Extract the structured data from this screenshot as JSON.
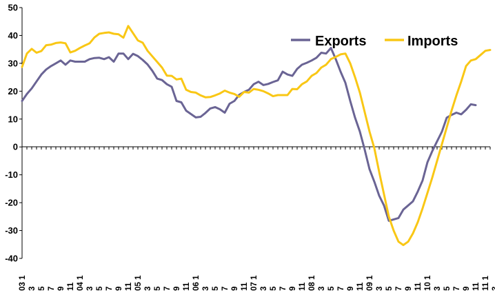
{
  "chart_data": {
    "type": "line",
    "title": "",
    "xlabel": "",
    "ylabel": "",
    "ylim": [
      -40,
      50
    ],
    "yticks": [
      50,
      40,
      30,
      20,
      10,
      0,
      -10,
      -20,
      -30,
      -40
    ],
    "grid": false,
    "legend_placement": "top-right",
    "x_tick_labels": [
      {
        "month": 0,
        "label": "03 1"
      },
      {
        "month": 2,
        "label": "3"
      },
      {
        "month": 4,
        "label": "5"
      },
      {
        "month": 6,
        "label": "7"
      },
      {
        "month": 8,
        "label": "9"
      },
      {
        "month": 10,
        "label": "11"
      },
      {
        "month": 12,
        "label": "04 1"
      },
      {
        "month": 14,
        "label": "3"
      },
      {
        "month": 16,
        "label": "5"
      },
      {
        "month": 18,
        "label": "7"
      },
      {
        "month": 20,
        "label": "9"
      },
      {
        "month": 22,
        "label": "11"
      },
      {
        "month": 24,
        "label": "05 1"
      },
      {
        "month": 26,
        "label": "3"
      },
      {
        "month": 28,
        "label": "5"
      },
      {
        "month": 30,
        "label": "7"
      },
      {
        "month": 32,
        "label": "9"
      },
      {
        "month": 34,
        "label": "11"
      },
      {
        "month": 36,
        "label": "06 1"
      },
      {
        "month": 38,
        "label": "3"
      },
      {
        "month": 40,
        "label": "5"
      },
      {
        "month": 42,
        "label": "7"
      },
      {
        "month": 44,
        "label": "9"
      },
      {
        "month": 46,
        "label": "11"
      },
      {
        "month": 48,
        "label": "07 1"
      },
      {
        "month": 50,
        "label": "3"
      },
      {
        "month": 52,
        "label": "5"
      },
      {
        "month": 54,
        "label": "7"
      },
      {
        "month": 56,
        "label": "9"
      },
      {
        "month": 58,
        "label": "11"
      },
      {
        "month": 60,
        "label": "08 1"
      },
      {
        "month": 62,
        "label": "3"
      },
      {
        "month": 64,
        "label": "5"
      },
      {
        "month": 66,
        "label": "7"
      },
      {
        "month": 68,
        "label": "9"
      },
      {
        "month": 70,
        "label": "11"
      },
      {
        "month": 72,
        "label": "09 1"
      },
      {
        "month": 74,
        "label": "3"
      },
      {
        "month": 76,
        "label": "5"
      },
      {
        "month": 78,
        "label": "7"
      },
      {
        "month": 80,
        "label": "9"
      },
      {
        "month": 82,
        "label": "11"
      },
      {
        "month": 84,
        "label": "10 1"
      },
      {
        "month": 86,
        "label": "3"
      },
      {
        "month": 88,
        "label": "5"
      },
      {
        "month": 90,
        "label": "7"
      },
      {
        "month": 92,
        "label": "9"
      },
      {
        "month": 94,
        "label": "11"
      },
      {
        "month": 96,
        "label": "11 1"
      },
      {
        "month": 98,
        "label": "3"
      }
    ],
    "series": [
      {
        "name": "Exports",
        "color": "#6A6494",
        "values": [
          16.5,
          19,
          21,
          23.5,
          26,
          27.8,
          29,
          30,
          31,
          29.5,
          31,
          30.6,
          30.6,
          30.6,
          31.5,
          31.9,
          32,
          31.5,
          32.2,
          30.6,
          33.5,
          33.5,
          31.5,
          33.4,
          32.6,
          31.2,
          29.6,
          27.3,
          24.5,
          24,
          22.5,
          21.6,
          16.5,
          16,
          13,
          11.8,
          10.6,
          10.8,
          12.2,
          13.8,
          14.3,
          13.5,
          12.3,
          15.5,
          16.5,
          18.7,
          19.7,
          20.5,
          22.5,
          23.4,
          22.2,
          22.6,
          23.3,
          23.9,
          27,
          26,
          25.5,
          28,
          29.5,
          30.2,
          31,
          32,
          33.8,
          33.5,
          35.5,
          31.5,
          27,
          23,
          16.5,
          10.5,
          5.5,
          -1,
          -8,
          -12.5,
          -17.5,
          -21,
          -26.5,
          -26,
          -25.5,
          -22.5,
          -21,
          -19.5,
          -16,
          -12,
          -5.5,
          -1.5,
          2,
          5.5,
          10.5,
          11.5,
          12.3,
          11.7,
          13.3,
          15.3,
          15
        ],
        "x_start_month": 0
      },
      {
        "name": "Imports",
        "color": "#F9C715",
        "values": [
          28.7,
          33.5,
          35.2,
          33.8,
          34.4,
          36.5,
          36.7,
          37.3,
          37.5,
          37.2,
          33.9,
          34.5,
          35.5,
          36.4,
          37.2,
          39.3,
          40.6,
          40.9,
          41.1,
          40.6,
          40.4,
          39.2,
          43.4,
          40.8,
          38.2,
          37.4,
          34.5,
          32.5,
          30.5,
          28.5,
          25.6,
          25.5,
          24.2,
          24.5,
          20.5,
          19.7,
          19.5,
          18.5,
          17.8,
          17.9,
          18.5,
          19.2,
          20.2,
          19.5,
          19,
          18,
          19.7,
          19.5,
          20.8,
          20.5,
          20,
          19.2,
          18.2,
          18.6,
          18.6,
          18.6,
          20.8,
          20.7,
          22.5,
          23.5,
          25.5,
          26.5,
          28.5,
          29.5,
          31.5,
          32.3,
          33.2,
          33.5,
          30,
          25,
          19.5,
          12.5,
          5.5,
          -0.5,
          -9,
          -17,
          -25,
          -30,
          -34,
          -35.2,
          -34,
          -31,
          -27,
          -22,
          -16.5,
          -11,
          -5,
          1,
          7,
          13,
          18.5,
          23.5,
          29,
          31,
          31.5,
          33,
          34.5,
          34.8
        ],
        "x_start_month": 0
      }
    ]
  }
}
